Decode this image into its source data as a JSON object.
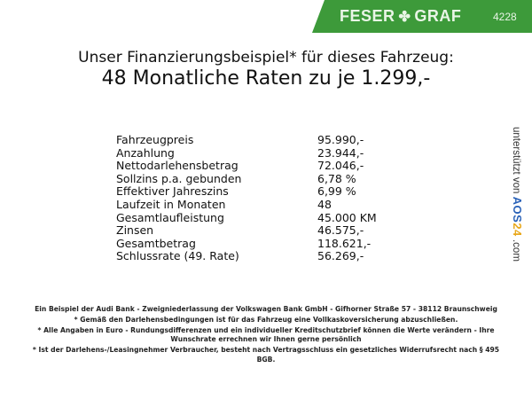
{
  "header": {
    "brand": "FESER",
    "brand2": "GRAF",
    "dealer_id": "4228",
    "accent": "#3d9a3a"
  },
  "title": {
    "line1": "Unser Finanzierungsbeispiel* für dieses Fahrzeug:",
    "line2": "48 Monatliche Raten zu je 1.299,-"
  },
  "rows": [
    {
      "label": "Fahrzeugpreis",
      "value": "95.990,-"
    },
    {
      "label": "Anzahlung",
      "value": "23.944,-"
    },
    {
      "label": "Nettodarlehensbetrag",
      "value": "72.046,-"
    },
    {
      "label": "Sollzins p.a. gebunden",
      "value": "6,78 %"
    },
    {
      "label": "Effektiver Jahreszins",
      "value": "6,99 %"
    },
    {
      "label": "Laufzeit in Monaten",
      "value": "48"
    },
    {
      "label": "Gesamtlaufleistung",
      "value": "45.000 KM"
    },
    {
      "label": "Zinsen",
      "value": "46.575,-"
    },
    {
      "label": "Gesamtbetrag",
      "value": "118.621,-"
    },
    {
      "label": "Schlussrate (49. Rate)",
      "value": "56.269,-"
    }
  ],
  "side": {
    "prefix": "unterstützt von",
    "logo": "AOS24",
    "suffix": ".com"
  },
  "footer": [
    "Ein Beispiel der Audi Bank - Zweigniederlassung der Volkswagen Bank GmbH - Gifhorner Straße 57 - 38112 Braunschweig",
    "* Gemäß den Darlehensbedingungen ist für das Fahrzeug eine Vollkaskoversicherung abzuschließen.",
    "* Alle Angaben in Euro - Rundungsdifferenzen und ein individueller Kreditschutzbrief können die Werte verändern - Ihre Wunschrate errechnen wir Ihnen gerne persönlich",
    "* Ist der Darlehens-/Leasingnehmer Verbraucher, besteht nach Vertragsschluss ein gesetzliches Widerrufsrecht nach § 495 BGB."
  ]
}
